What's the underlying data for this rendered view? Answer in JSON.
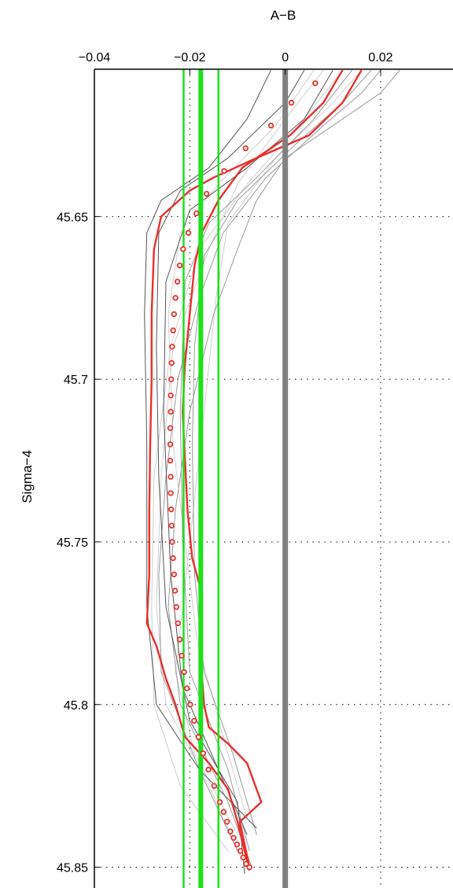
{
  "chart_data": {
    "type": "line",
    "title": "",
    "xlabel": "A−B",
    "ylabel": "Sigma−4",
    "x_axis_position": "top",
    "y_axis_inverted": true,
    "xlim": [
      -0.04,
      0.02
    ],
    "ylim": [
      45.605,
      45.852
    ],
    "x_ticks": [
      -0.04,
      -0.02,
      0,
      0.02
    ],
    "x_tick_labels": [
      "−0.04",
      "−0.02",
      "0",
      "0.02"
    ],
    "y_ticks": [
      45.65,
      45.7,
      45.75,
      45.8,
      45.85
    ],
    "y_tick_labels": [
      "45.65",
      "45.7",
      "45.75",
      "45.8",
      "45.85"
    ],
    "grid": true,
    "colors": {
      "red": "#e8302c",
      "green": "#1be21b",
      "zero_line": "#808080",
      "dark_gray": "#555555",
      "mid_gray": "#9a9a9a",
      "light_gray": "#cfcfcf"
    },
    "reference_lines": {
      "zero": 0,
      "green_center": -0.0177,
      "green_lower": -0.0213,
      "green_upper": -0.014
    },
    "markers": {
      "y": [
        45.609,
        45.615,
        45.622,
        45.629,
        45.636,
        45.643,
        45.649,
        45.655,
        45.66,
        45.665,
        45.67,
        45.675,
        45.68,
        45.685,
        45.69,
        45.695,
        45.7,
        45.705,
        45.71,
        45.715,
        45.72,
        45.725,
        45.73,
        45.735,
        45.74,
        45.745,
        45.75,
        45.755,
        45.76,
        45.765,
        45.77,
        45.775,
        45.78,
        45.785,
        45.79,
        45.795,
        45.8,
        45.805,
        45.81,
        45.815,
        45.82,
        45.825,
        45.83,
        45.833,
        45.836,
        45.839,
        45.841,
        45.843,
        45.845,
        45.847,
        45.849,
        45.85
      ],
      "x": [
        0.0063,
        0.0013,
        -0.003,
        -0.0083,
        -0.0128,
        -0.0165,
        -0.0186,
        -0.0203,
        -0.0214,
        -0.0221,
        -0.0226,
        -0.023,
        -0.0233,
        -0.0235,
        -0.0237,
        -0.0238,
        -0.0239,
        -0.024,
        -0.024,
        -0.0241,
        -0.0241,
        -0.0241,
        -0.024,
        -0.024,
        -0.0239,
        -0.0238,
        -0.0237,
        -0.0235,
        -0.0233,
        -0.0231,
        -0.0228,
        -0.0225,
        -0.0221,
        -0.0217,
        -0.0212,
        -0.0206,
        -0.0199,
        -0.0191,
        -0.0182,
        -0.0172,
        -0.0161,
        -0.0149,
        -0.0137,
        -0.0129,
        -0.0122,
        -0.0115,
        -0.0108,
        -0.0101,
        -0.0094,
        -0.0088,
        -0.0082,
        -0.0075
      ]
    },
    "series": [
      {
        "style": "red",
        "points": [
          [
            0.016,
            45.605
          ],
          [
            0.012,
            45.615
          ],
          [
            0.005,
            45.625
          ],
          [
            -0.006,
            45.632
          ],
          [
            -0.015,
            45.638
          ],
          [
            -0.02,
            45.642
          ],
          [
            -0.026,
            45.65
          ],
          [
            -0.0275,
            45.66
          ],
          [
            -0.028,
            45.68
          ],
          [
            -0.028,
            45.7
          ],
          [
            -0.0283,
            45.72
          ],
          [
            -0.0285,
            45.74
          ],
          [
            -0.0285,
            45.76
          ],
          [
            -0.029,
            45.775
          ],
          [
            -0.027,
            45.782
          ],
          [
            -0.025,
            45.792
          ],
          [
            -0.023,
            45.8
          ],
          [
            -0.021,
            45.81
          ],
          [
            -0.016,
            45.818
          ],
          [
            -0.012,
            45.826
          ],
          [
            -0.01,
            45.836
          ],
          [
            -0.0085,
            45.845
          ],
          [
            -0.0075,
            45.851
          ]
        ]
      },
      {
        "style": "red",
        "points": [
          [
            0.012,
            45.605
          ],
          [
            0.008,
            45.615
          ],
          [
            0.001,
            45.625
          ],
          [
            -0.009,
            45.635
          ],
          [
            -0.014,
            45.645
          ],
          [
            -0.0175,
            45.655
          ],
          [
            -0.019,
            45.665
          ],
          [
            -0.02,
            45.68
          ],
          [
            -0.021,
            45.695
          ],
          [
            -0.0215,
            45.71
          ],
          [
            -0.021,
            45.725
          ],
          [
            -0.0205,
            45.74
          ],
          [
            -0.0195,
            45.755
          ],
          [
            -0.018,
            45.763
          ],
          [
            -0.0175,
            45.773
          ],
          [
            -0.0175,
            45.79
          ],
          [
            -0.017,
            45.8
          ],
          [
            -0.016,
            45.807
          ],
          [
            -0.012,
            45.812
          ],
          [
            -0.008,
            45.818
          ],
          [
            -0.005,
            45.83
          ],
          [
            -0.0095,
            45.836
          ],
          [
            -0.0075,
            45.85
          ]
        ]
      },
      {
        "style": "dark",
        "points": [
          [
            -0.003,
            45.605
          ],
          [
            -0.008,
            45.62
          ],
          [
            -0.016,
            45.635
          ],
          [
            -0.026,
            45.645
          ],
          [
            -0.029,
            45.655
          ],
          [
            -0.0295,
            45.68
          ],
          [
            -0.029,
            45.72
          ],
          [
            -0.029,
            45.77
          ],
          [
            -0.027,
            45.8
          ],
          [
            -0.018,
            45.82
          ],
          [
            -0.006,
            45.838
          ]
        ]
      },
      {
        "style": "dark",
        "points": [
          [
            0.004,
            45.605
          ],
          [
            0.0,
            45.615
          ],
          [
            -0.012,
            45.632
          ],
          [
            -0.022,
            45.642
          ],
          [
            -0.0265,
            45.655
          ],
          [
            -0.027,
            45.69
          ],
          [
            -0.0265,
            45.73
          ],
          [
            -0.025,
            45.77
          ],
          [
            -0.02,
            45.805
          ],
          [
            -0.01,
            45.83
          ],
          [
            -0.0085,
            45.852
          ]
        ]
      },
      {
        "style": "dark",
        "points": [
          [
            0.01,
            45.605
          ],
          [
            0.004,
            45.62
          ],
          [
            -0.008,
            45.635
          ],
          [
            -0.02,
            45.648
          ],
          [
            -0.025,
            45.67
          ],
          [
            -0.0255,
            45.71
          ],
          [
            -0.024,
            45.76
          ],
          [
            -0.0215,
            45.795
          ],
          [
            -0.014,
            45.82
          ],
          [
            -0.008,
            45.84
          ]
        ]
      },
      {
        "style": "mid",
        "points": [
          [
            0.014,
            45.605
          ],
          [
            0.006,
            45.62
          ],
          [
            -0.006,
            45.638
          ],
          [
            -0.016,
            45.652
          ],
          [
            -0.021,
            45.67
          ],
          [
            -0.022,
            45.71
          ],
          [
            -0.0215,
            45.75
          ],
          [
            -0.02,
            45.79
          ],
          [
            -0.012,
            45.82
          ],
          [
            -0.0075,
            45.845
          ]
        ]
      },
      {
        "style": "mid",
        "points": [
          [
            0.018,
            45.605
          ],
          [
            0.012,
            45.615
          ],
          [
            0.002,
            45.628
          ],
          [
            -0.01,
            45.645
          ],
          [
            -0.017,
            45.662
          ],
          [
            -0.019,
            45.69
          ],
          [
            -0.0195,
            45.72
          ],
          [
            -0.019,
            45.76
          ],
          [
            -0.017,
            45.79
          ],
          [
            -0.011,
            45.815
          ],
          [
            -0.006,
            45.84
          ]
        ]
      },
      {
        "style": "mid",
        "points": [
          [
            0.02,
            45.605
          ],
          [
            0.016,
            45.612
          ],
          [
            0.008,
            45.622
          ],
          [
            -0.004,
            45.638
          ],
          [
            -0.013,
            45.655
          ],
          [
            -0.018,
            45.675
          ],
          [
            -0.0225,
            45.7
          ],
          [
            -0.025,
            45.73
          ],
          [
            -0.0265,
            45.76
          ],
          [
            -0.026,
            45.79
          ],
          [
            -0.018,
            45.82
          ],
          [
            -0.01,
            45.845
          ]
        ]
      },
      {
        "style": "mid",
        "points": [
          [
            0.024,
            45.605
          ],
          [
            0.02,
            45.612
          ],
          [
            0.012,
            45.62
          ],
          [
            0.0,
            45.632
          ],
          [
            -0.006,
            45.645
          ],
          [
            -0.01,
            45.66
          ],
          [
            -0.015,
            45.68
          ],
          [
            -0.02,
            45.71
          ],
          [
            -0.023,
            45.74
          ],
          [
            -0.0245,
            45.77
          ],
          [
            -0.022,
            45.8
          ],
          [
            -0.012,
            45.83
          ],
          [
            -0.007,
            45.85
          ]
        ]
      },
      {
        "style": "light",
        "points": [
          [
            0.008,
            45.605
          ],
          [
            0.0,
            45.62
          ],
          [
            -0.01,
            45.64
          ],
          [
            -0.016,
            45.66
          ],
          [
            -0.0235,
            45.69
          ],
          [
            -0.026,
            45.73
          ],
          [
            -0.027,
            45.77
          ],
          [
            -0.025,
            45.8
          ],
          [
            -0.016,
            45.825
          ],
          [
            -0.009,
            45.848
          ]
        ]
      },
      {
        "style": "light",
        "points": [
          [
            0.016,
            45.605
          ],
          [
            0.01,
            45.615
          ],
          [
            -0.002,
            45.632
          ],
          [
            -0.012,
            45.652
          ],
          [
            -0.0145,
            45.675
          ],
          [
            -0.017,
            45.71
          ],
          [
            -0.02,
            45.75
          ],
          [
            -0.023,
            45.79
          ],
          [
            -0.019,
            45.815
          ],
          [
            -0.01,
            45.84
          ]
        ]
      },
      {
        "style": "light",
        "points": [
          [
            0.012,
            45.605
          ],
          [
            0.004,
            45.62
          ],
          [
            -0.008,
            45.64
          ],
          [
            -0.018,
            45.66
          ],
          [
            -0.024,
            45.69
          ],
          [
            -0.0275,
            45.73
          ],
          [
            -0.028,
            45.77
          ],
          [
            -0.0275,
            45.8
          ],
          [
            -0.022,
            45.825
          ],
          [
            -0.012,
            45.845
          ]
        ]
      },
      {
        "style": "light",
        "points": [
          [
            0.006,
            45.605
          ],
          [
            -0.002,
            45.622
          ],
          [
            -0.014,
            45.64
          ],
          [
            -0.022,
            45.655
          ],
          [
            -0.0245,
            45.68
          ],
          [
            -0.0235,
            45.72
          ],
          [
            -0.021,
            45.75
          ],
          [
            -0.0185,
            45.78
          ],
          [
            -0.013,
            45.81
          ],
          [
            -0.008,
            45.835
          ]
        ]
      }
    ]
  }
}
